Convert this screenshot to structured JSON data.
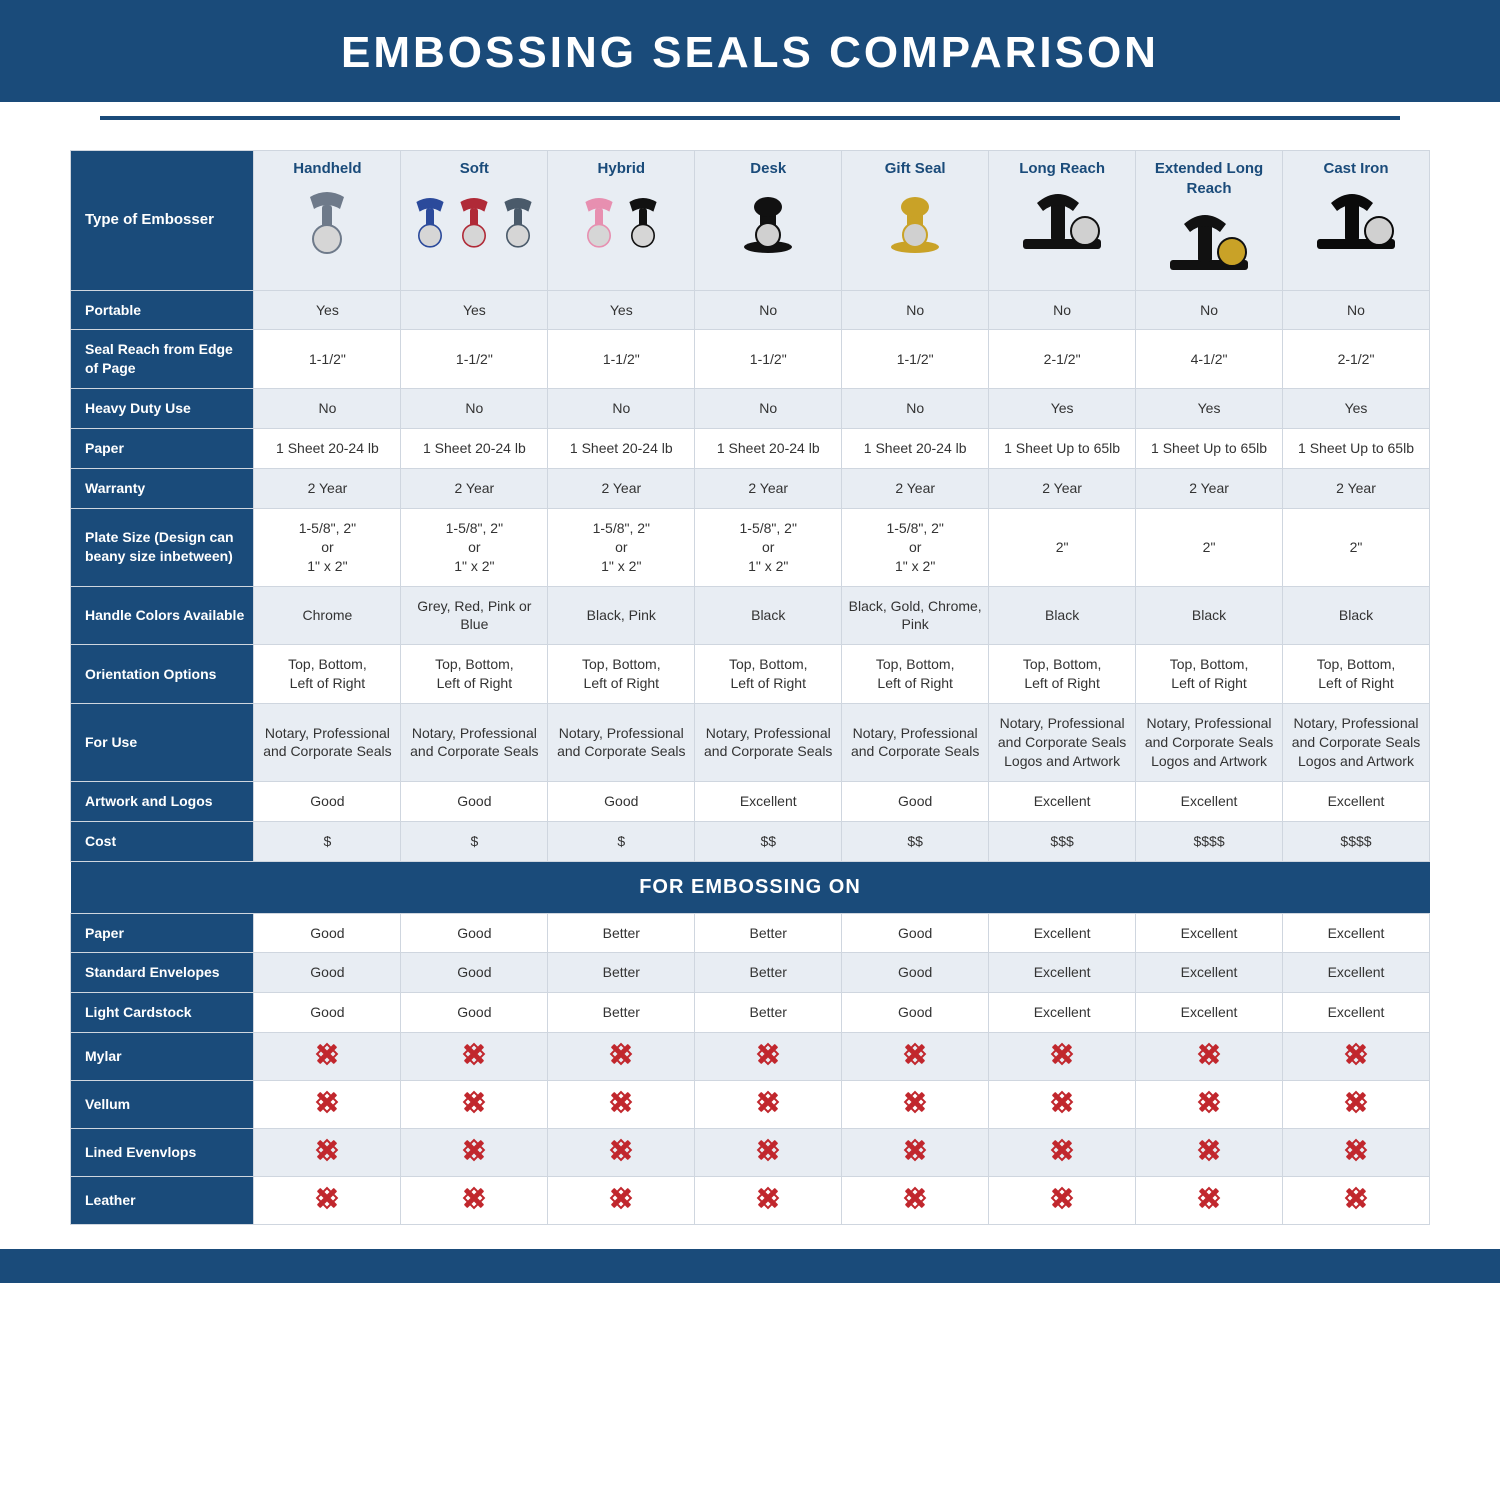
{
  "title": "EMBOSSING SEALS COMPARISON",
  "colors": {
    "brand": "#1a4b7a",
    "altRow": "#e8edf3",
    "border": "#cfd6df",
    "xmark": "#c1272d",
    "text": "#333333",
    "bg": "#ffffff"
  },
  "typography": {
    "title_fontsize": 44,
    "header_fontsize": 15,
    "cell_fontsize": 14,
    "band_fontsize": 20
  },
  "columns": [
    {
      "label": "Handheld",
      "icon_colors": [
        "#6e7a8a"
      ]
    },
    {
      "label": "Soft",
      "icon_colors": [
        "#2b4a9b",
        "#b02a37",
        "#4a5a6a"
      ]
    },
    {
      "label": "Hybrid",
      "icon_colors": [
        "#e78fb0",
        "#111111"
      ]
    },
    {
      "label": "Desk",
      "icon_colors": [
        "#111111"
      ]
    },
    {
      "label": "Gift Seal",
      "icon_colors": [
        "#c9a227",
        "#e78fb0",
        "#6e7a8a"
      ]
    },
    {
      "label": "Long Reach",
      "icon_colors": [
        "#111111"
      ]
    },
    {
      "label": "Extended Long Reach",
      "icon_colors": [
        "#111111",
        "#c9a227"
      ]
    },
    {
      "label": "Cast Iron",
      "icon_colors": [
        "#0a0a0a"
      ]
    }
  ],
  "row_header_label": "Type of Embosser",
  "rows": [
    {
      "label": "Portable",
      "alt": true,
      "cells": [
        "Yes",
        "Yes",
        "Yes",
        "No",
        "No",
        "No",
        "No",
        "No"
      ]
    },
    {
      "label": "Seal Reach from Edge of Page",
      "alt": false,
      "cells": [
        "1-1/2\"",
        "1-1/2\"",
        "1-1/2\"",
        "1-1/2\"",
        "1-1/2\"",
        "2-1/2\"",
        "4-1/2\"",
        "2-1/2\""
      ]
    },
    {
      "label": "Heavy Duty Use",
      "alt": true,
      "cells": [
        "No",
        "No",
        "No",
        "No",
        "No",
        "Yes",
        "Yes",
        "Yes"
      ]
    },
    {
      "label": "Paper",
      "alt": false,
      "cells": [
        "1 Sheet 20-24 lb",
        "1 Sheet 20-24 lb",
        "1 Sheet 20-24 lb",
        "1 Sheet 20-24 lb",
        "1 Sheet 20-24 lb",
        "1 Sheet Up to 65lb",
        "1 Sheet Up to 65lb",
        "1 Sheet Up to 65lb"
      ]
    },
    {
      "label": "Warranty",
      "alt": true,
      "cells": [
        "2 Year",
        "2 Year",
        "2 Year",
        "2 Year",
        "2 Year",
        "2 Year",
        "2 Year",
        "2 Year"
      ]
    },
    {
      "label": "Plate Size (Design can beany size inbetween)",
      "alt": false,
      "cells": [
        "1-5/8\", 2\"\nor\n1\" x 2\"",
        "1-5/8\", 2\"\nor\n1\" x 2\"",
        "1-5/8\", 2\"\nor\n1\" x 2\"",
        "1-5/8\", 2\"\nor\n1\" x 2\"",
        "1-5/8\", 2\"\nor\n1\" x 2\"",
        "2\"",
        "2\"",
        "2\""
      ]
    },
    {
      "label": "Handle Colors Available",
      "alt": true,
      "cells": [
        "Chrome",
        "Grey, Red, Pink or Blue",
        "Black, Pink",
        "Black",
        "Black, Gold, Chrome, Pink",
        "Black",
        "Black",
        "Black"
      ]
    },
    {
      "label": "Orientation Options",
      "alt": false,
      "cells": [
        "Top, Bottom,\nLeft of Right",
        "Top, Bottom,\nLeft of Right",
        "Top, Bottom,\nLeft of Right",
        "Top, Bottom,\nLeft of Right",
        "Top, Bottom,\nLeft of Right",
        "Top, Bottom,\nLeft of Right",
        "Top, Bottom,\nLeft of Right",
        "Top, Bottom,\nLeft of Right"
      ]
    },
    {
      "label": "For Use",
      "alt": true,
      "cells": [
        "Notary, Professional and Corporate Seals",
        "Notary, Professional and Corporate Seals",
        "Notary, Professional and Corporate Seals",
        "Notary, Professional and Corporate Seals",
        "Notary, Professional and Corporate Seals",
        "Notary, Professional and Corporate Seals Logos and Artwork",
        "Notary, Professional and Corporate Seals Logos and Artwork",
        "Notary, Professional and Corporate Seals Logos and Artwork"
      ]
    },
    {
      "label": "Artwork and Logos",
      "alt": false,
      "cells": [
        "Good",
        "Good",
        "Good",
        "Excellent",
        "Good",
        "Excellent",
        "Excellent",
        "Excellent"
      ]
    },
    {
      "label": "Cost",
      "alt": true,
      "cells": [
        "$",
        "$",
        "$",
        "$$",
        "$$",
        "$$$",
        "$$$$",
        "$$$$"
      ]
    }
  ],
  "section_band": "FOR EMBOSSING ON",
  "rows2": [
    {
      "label": "Paper",
      "alt": false,
      "cells": [
        "Good",
        "Good",
        "Better",
        "Better",
        "Good",
        "Excellent",
        "Excellent",
        "Excellent"
      ]
    },
    {
      "label": "Standard Envelopes",
      "alt": true,
      "cells": [
        "Good",
        "Good",
        "Better",
        "Better",
        "Good",
        "Excellent",
        "Excellent",
        "Excellent"
      ]
    },
    {
      "label": "Light Cardstock",
      "alt": false,
      "cells": [
        "Good",
        "Good",
        "Better",
        "Better",
        "Good",
        "Excellent",
        "Excellent",
        "Excellent"
      ]
    },
    {
      "label": "Mylar",
      "alt": true,
      "cells": [
        "X",
        "X",
        "X",
        "X",
        "X",
        "X",
        "X",
        "X"
      ]
    },
    {
      "label": "Vellum",
      "alt": false,
      "cells": [
        "X",
        "X",
        "X",
        "X",
        "X",
        "X",
        "X",
        "X"
      ]
    },
    {
      "label": "Lined Evenvlops",
      "alt": true,
      "cells": [
        "X",
        "X",
        "X",
        "X",
        "X",
        "X",
        "X",
        "X"
      ]
    },
    {
      "label": "Leather",
      "alt": false,
      "cells": [
        "X",
        "X",
        "X",
        "X",
        "X",
        "X",
        "X",
        "X"
      ]
    }
  ]
}
